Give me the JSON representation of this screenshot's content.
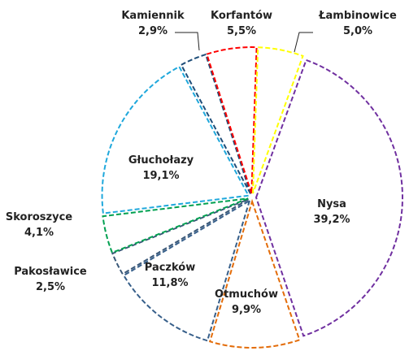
{
  "chart_data": {
    "type": "pie",
    "categories": [
      "Nysa",
      "Otmuchów",
      "Paczków",
      "Pakosławice",
      "Skoroszyce",
      "Głuchołazy",
      "Kamiennik",
      "Korfantów",
      "Łambinowice"
    ],
    "values": [
      39.2,
      9.9,
      11.8,
      2.5,
      4.1,
      19.1,
      2.9,
      5.5,
      5.0
    ],
    "value_labels": [
      "39,2%",
      "9,9%",
      "11,8%",
      "2,5%",
      "4,1%",
      "19,1%",
      "2,9%",
      "5,5%",
      "5,0%"
    ],
    "colors": [
      "#7030a0",
      "#e36c09",
      "#375f8a",
      "#3a5878",
      "#00a050",
      "#1fa8dc",
      "#1f4e79",
      "#ff0000",
      "#ffff00"
    ]
  }
}
